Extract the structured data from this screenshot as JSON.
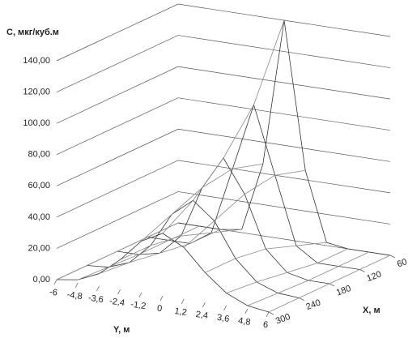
{
  "chart_data": {
    "type": "surface",
    "zlabel": "C, мкг/куб.м",
    "xlabel": "X, м",
    "ylabel": "Y, м",
    "x": [
      60,
      120,
      180,
      240,
      300
    ],
    "y": [
      -6,
      {
        "value": -4.8,
        "label": "-4,8"
      },
      {
        "value": -3.6,
        "label": "-3,6"
      },
      {
        "value": -2.4,
        "label": "-2,4"
      },
      {
        "value": -1.2,
        "label": "-1,2"
      },
      0,
      {
        "value": 1.2,
        "label": "1,2"
      },
      {
        "value": 2.4,
        "label": "2,4"
      },
      {
        "value": 3.6,
        "label": "3,6"
      },
      {
        "value": 4.8,
        "label": "4,8"
      },
      6
    ],
    "values": [
      [
        0,
        0,
        0,
        2,
        46,
        140,
        46,
        2,
        0,
        0,
        0
      ],
      [
        0,
        0,
        0,
        9,
        52,
        95,
        52,
        9,
        0,
        0,
        0
      ],
      [
        0,
        0,
        3,
        16,
        49,
        70,
        49,
        16,
        3,
        0,
        0
      ],
      [
        0,
        1,
        6,
        19,
        41,
        52,
        41,
        19,
        6,
        1,
        0
      ],
      [
        0,
        2,
        8,
        19,
        33,
        40,
        33,
        19,
        8,
        2,
        0
      ]
    ],
    "zlim": [
      0,
      140
    ],
    "zticks": [
      {
        "value": 0,
        "label": "0,00"
      },
      {
        "value": 20,
        "label": "20,00"
      },
      {
        "value": 40,
        "label": "40,00"
      },
      {
        "value": 60,
        "label": "60,00"
      },
      {
        "value": 80,
        "label": "80,00"
      },
      {
        "value": 100,
        "label": "100,00"
      },
      {
        "value": 120,
        "label": "120,00"
      },
      {
        "value": 140,
        "label": "140,00"
      }
    ],
    "color": "#333333",
    "grid": true
  }
}
